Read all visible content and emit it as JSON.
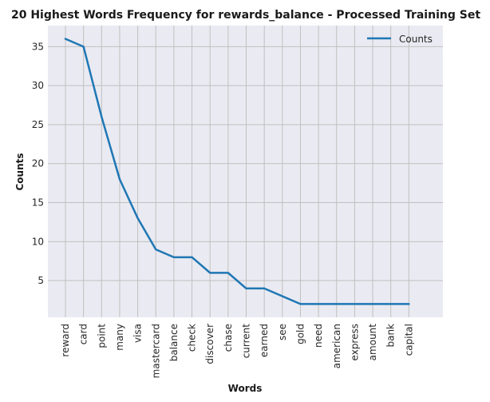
{
  "chart_data": {
    "type": "line",
    "title": "20 Highest Words Frequency for rewards_balance - Processed Training Set",
    "xlabel": "Words",
    "ylabel": "Counts",
    "categories": [
      "reward",
      "card",
      "point",
      "many",
      "visa",
      "mastercard",
      "balance",
      "check",
      "discover",
      "chase",
      "current",
      "earned",
      "see",
      "gold",
      "need",
      "american",
      "express",
      "amount",
      "bank",
      "capital"
    ],
    "series": [
      {
        "name": "Counts",
        "values": [
          36,
          35,
          26,
          18,
          13,
          9,
          8,
          8,
          6,
          6,
          4,
          4,
          3,
          2,
          2,
          2,
          2,
          2,
          2,
          2
        ]
      }
    ],
    "y_ticks": [
      5,
      10,
      15,
      20,
      25,
      30,
      35
    ],
    "ylim": [
      0.3,
      37.7
    ],
    "grid": true,
    "legend": "top-right",
    "colors": {
      "line": "#1f77b4",
      "plot_bg": "#eaeaf2",
      "grid": "#c0c0c0"
    }
  }
}
